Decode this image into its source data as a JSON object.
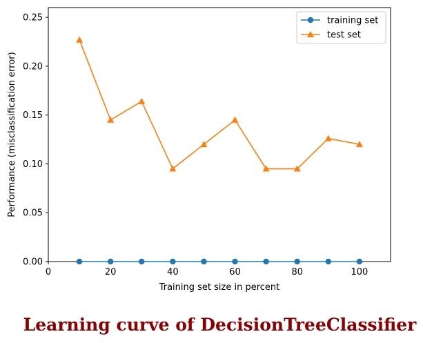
{
  "caption": "Learning curve of DecisionTreeClassifier",
  "chart_data": {
    "type": "line",
    "xlabel": "Training set size in percent",
    "ylabel": "Performance (misclassification error)",
    "xlim": [
      0,
      110
    ],
    "ylim": [
      0,
      0.26
    ],
    "xticks": [
      0,
      20,
      40,
      60,
      80,
      100
    ],
    "yticks": [
      0.0,
      0.05,
      0.1,
      0.15,
      0.2,
      0.25
    ],
    "xtick_labels": [
      "0",
      "20",
      "40",
      "60",
      "80",
      "100"
    ],
    "ytick_labels": [
      "0.00",
      "0.05",
      "0.10",
      "0.15",
      "0.20",
      "0.25"
    ],
    "grid": false,
    "legend": "top-right",
    "x": [
      10,
      20,
      30,
      40,
      50,
      60,
      70,
      80,
      90,
      100
    ],
    "series": [
      {
        "name": "training set",
        "marker": "circle",
        "color": "#1f77b4",
        "values": [
          0,
          0,
          0,
          0,
          0,
          0,
          0,
          0,
          0,
          0
        ]
      },
      {
        "name": "test set",
        "marker": "triangle",
        "color": "#ff7f0e",
        "values": [
          0.227,
          0.145,
          0.164,
          0.095,
          0.12,
          0.145,
          0.095,
          0.095,
          0.126,
          0.12
        ]
      }
    ]
  }
}
